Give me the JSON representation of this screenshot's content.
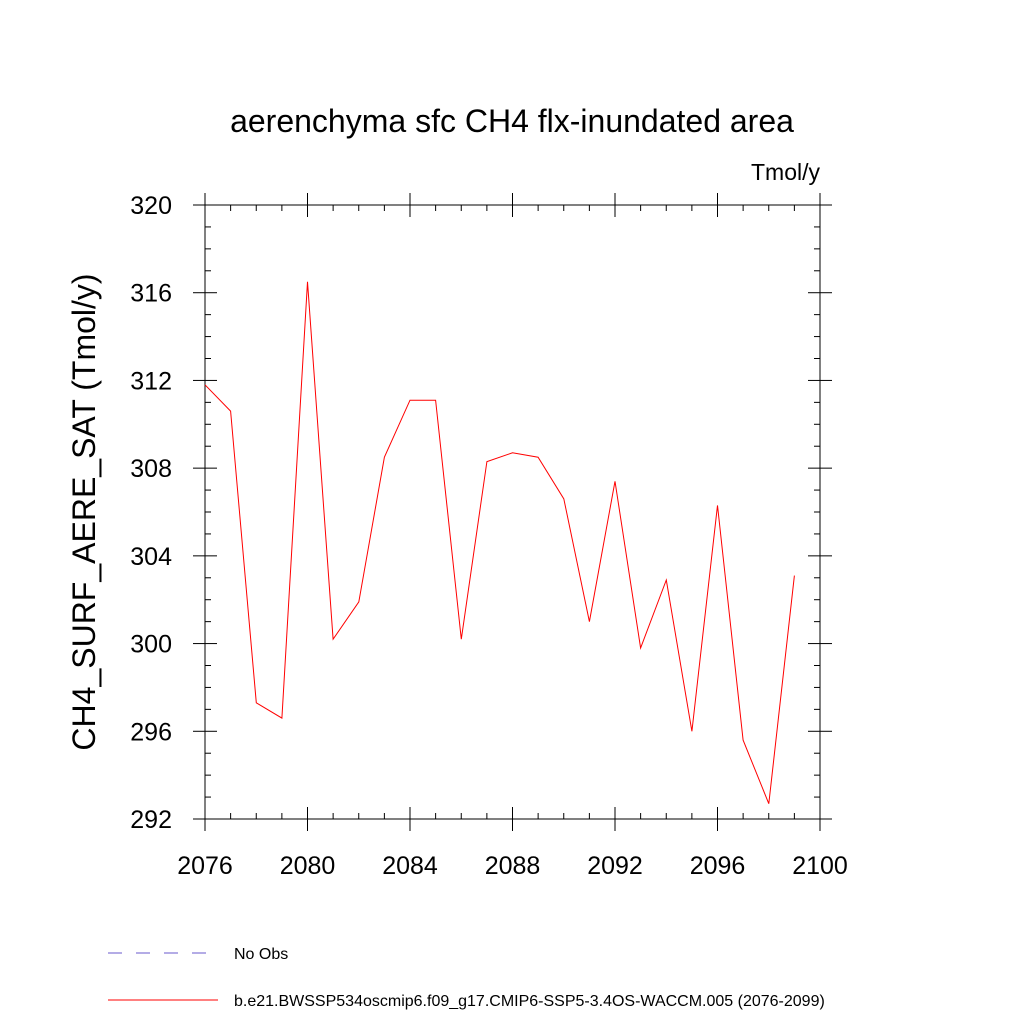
{
  "chart_data": {
    "type": "line",
    "title": "aerenchyma sfc CH4 flx-inundated area",
    "units": "Tmol/y",
    "xlabel": "",
    "ylabel": "CH4_SURF_AERE_SAT  (Tmol/y)",
    "xlim": [
      2076,
      2100
    ],
    "ylim": [
      292,
      320
    ],
    "xticks": [
      2076,
      2080,
      2084,
      2088,
      2092,
      2096,
      2100
    ],
    "yticks": [
      292,
      296,
      300,
      304,
      308,
      312,
      316,
      320
    ],
    "grid": false,
    "series": [
      {
        "name": "b.e21.BWSSP534oscmip6.f09_g17.CMIP6-SSP5-3.4OS-WACCM.005 (2076-2099)",
        "color": "#ff0000",
        "x": [
          2076,
          2077,
          2078,
          2079,
          2080,
          2081,
          2082,
          2083,
          2084,
          2085,
          2086,
          2087,
          2088,
          2089,
          2090,
          2091,
          2092,
          2093,
          2094,
          2095,
          2096,
          2097,
          2098,
          2099
        ],
        "values": [
          311.8,
          310.6,
          297.3,
          296.6,
          316.5,
          300.2,
          301.9,
          308.5,
          311.1,
          311.1,
          300.2,
          308.3,
          308.7,
          308.5,
          306.6,
          301.0,
          307.4,
          299.8,
          302.9,
          296.0,
          306.3,
          295.6,
          292.7,
          303.1
        ]
      }
    ],
    "legend": {
      "placement": "bottom-left",
      "entries": [
        {
          "label": "No Obs",
          "style": "dashed",
          "color": "#6a5acd"
        },
        {
          "label": "b.e21.BWSSP534oscmip6.f09_g17.CMIP6-SSP5-3.4OS-WACCM.005 (2076-2099)",
          "style": "solid",
          "color": "#ff0000"
        }
      ]
    }
  }
}
